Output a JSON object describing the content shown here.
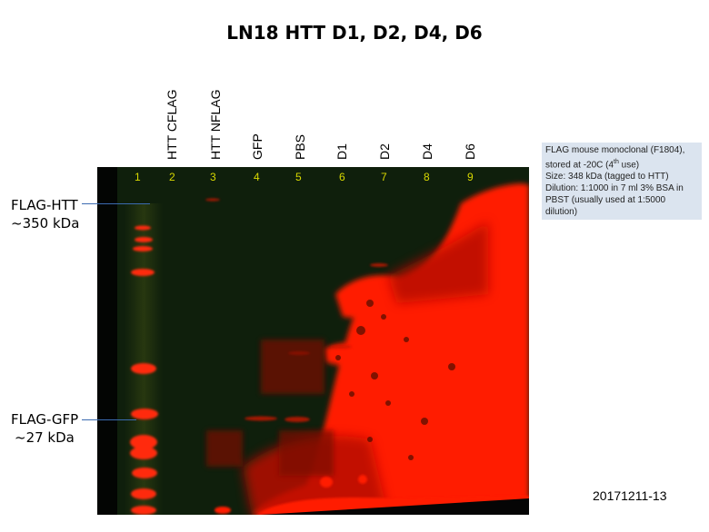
{
  "title": "LN18 HTT D1, D2, D4, D6",
  "lane_labels": [
    "HTT CFLAG",
    "HTT NFLAG",
    "GFP",
    "PBS",
    "D1",
    "D2",
    "D4",
    "D6"
  ],
  "lane_numbers": [
    "1",
    "2",
    "3",
    "4",
    "5",
    "6",
    "7",
    "8",
    "9"
  ],
  "markers": {
    "htt": {
      "line1": "FLAG-HTT",
      "line2": "~350 kDa"
    },
    "gfp": {
      "line1": "FLAG-GFP",
      "line2": "~27 kDa"
    }
  },
  "notes": {
    "line1": "FLAG mouse monoclonal (F1804),",
    "line2_pre": "stored at -20C (4",
    "line2_sup": "th",
    "line2_post": " use)",
    "line3": "Size: 348 kDa (tagged to HTT)",
    "line4": "Dilution: 1:1000 in 7 ml 3% BSA in",
    "line5": "PBST (usually used at 1:5000",
    "line6": "dilution)"
  },
  "image_id": "20171211-13",
  "colors": {
    "signal": "#ff1a00",
    "background": "#0f1f0c",
    "lane_number": "#d8d800",
    "notes_bg": "#dbe4ef"
  }
}
